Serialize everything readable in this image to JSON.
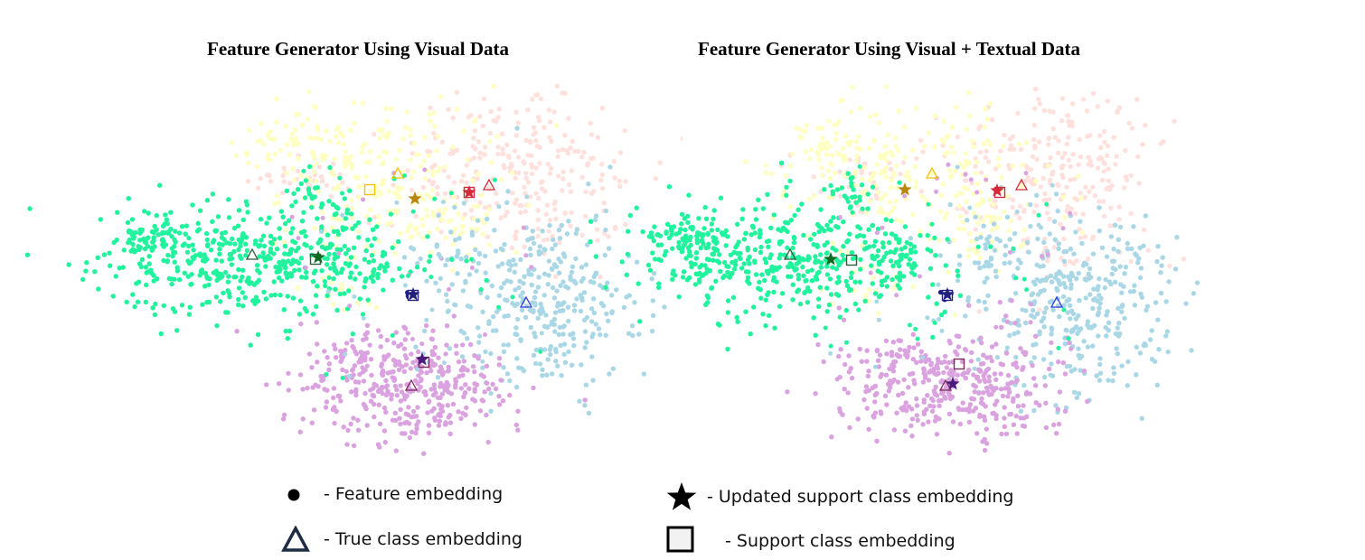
{
  "chart_data": [
    {
      "type": "scatter",
      "title": "Feature Generator Using Visual Data",
      "series": [
        {
          "cluster": "yellow",
          "color": "#ffffc2",
          "true_class": [
            440,
            192
          ],
          "support": [
            409,
            210
          ],
          "updated": [
            459,
            220
          ]
        },
        {
          "cluster": "pink",
          "color": "#ffe0dc",
          "true_class": [
            541,
            205
          ],
          "support": [
            519,
            213
          ],
          "updated": [
            519,
            213
          ]
        },
        {
          "cluster": "green",
          "color": "#21f29e",
          "true_class": [
            279,
            282
          ],
          "support": [
            349,
            287
          ],
          "updated": [
            352,
            285
          ]
        },
        {
          "cluster": "navy",
          "color": "#1c1c8a",
          "true_class": null,
          "support": [
            457,
            327
          ],
          "updated": [
            457,
            326
          ]
        },
        {
          "cluster": "lightblue",
          "color": "#a9d7e6",
          "true_class": [
            582,
            335
          ],
          "support": null,
          "updated": null
        },
        {
          "cluster": "purple",
          "color": "#dba2e0",
          "true_class": [
            455,
            427
          ],
          "support": [
            469,
            401
          ],
          "updated": [
            467,
            398
          ]
        }
      ]
    },
    {
      "type": "scatter",
      "title": "Feature Generator Using Visual + Textual Data",
      "series": [
        {
          "cluster": "yellow",
          "color": "#ffffc2",
          "true_class": [
            1031,
            192
          ],
          "support": null,
          "updated": [
            1001,
            210
          ]
        },
        {
          "cluster": "pink",
          "color": "#ffe0dc",
          "true_class": [
            1130,
            205
          ],
          "support": [
            1106,
            213
          ],
          "updated": [
            1103,
            211
          ]
        },
        {
          "cluster": "green",
          "color": "#21f29e",
          "true_class": [
            874,
            282
          ],
          "support": [
            942,
            288
          ],
          "updated": [
            919,
            287
          ]
        },
        {
          "cluster": "navy",
          "color": "#1c1c8a",
          "true_class": null,
          "support": [
            1048,
            327
          ],
          "updated": [
            1048,
            326
          ]
        },
        {
          "cluster": "lightblue",
          "color": "#a9d7e6",
          "true_class": [
            1169,
            335
          ],
          "support": null,
          "updated": null
        },
        {
          "cluster": "purple",
          "color": "#dba2e0",
          "true_class": [
            1046,
            427
          ],
          "support": [
            1061,
            403
          ],
          "updated": [
            1054,
            425
          ]
        }
      ]
    }
  ],
  "titles": {
    "left": "Feature Generator Using Visual Data",
    "right": "Feature Generator Using Visual + Textual Data"
  },
  "legend": {
    "feature": "- Feature embedding",
    "true_class": "- True class embedding",
    "updated": "- Updated support class embedding",
    "support": "- Support class embedding"
  },
  "marker_colors": {
    "yellow": "#b8860b",
    "yellow_outline": "#f2c200",
    "pink": "#d22a3a",
    "green": "#0b6a1f",
    "navy": "#22207a",
    "lightblue": "#2a3bd6",
    "purple": "#4b1a7a",
    "purple_outline": "#7a2a5a",
    "true_green": "#2e5a3a",
    "legend_outline": "#1f2d44"
  }
}
